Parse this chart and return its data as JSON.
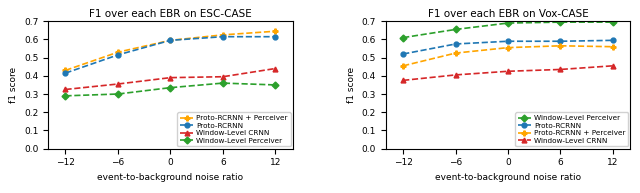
{
  "x": [
    -12,
    -6,
    0,
    6,
    12
  ],
  "esc": {
    "proto_rcrnn_perceiver": [
      0.43,
      0.53,
      0.595,
      0.625,
      0.645
    ],
    "proto_rcrnn": [
      0.415,
      0.515,
      0.595,
      0.615,
      0.615
    ],
    "window_crnn": [
      0.325,
      0.355,
      0.39,
      0.395,
      0.44
    ],
    "window_perceiver": [
      0.29,
      0.3,
      0.335,
      0.36,
      0.35
    ]
  },
  "vox": {
    "window_perceiver": [
      0.61,
      0.655,
      0.69,
      0.695,
      0.695
    ],
    "proto_rcrnn": [
      0.52,
      0.575,
      0.59,
      0.59,
      0.595
    ],
    "proto_rcrnn_perceiver": [
      0.455,
      0.525,
      0.555,
      0.565,
      0.56
    ],
    "window_crnn": [
      0.375,
      0.405,
      0.425,
      0.435,
      0.455
    ]
  },
  "colors": {
    "proto_rcrnn_perceiver": "#FFA500",
    "proto_rcrnn": "#1F77B4",
    "window_crnn": "#D62728",
    "window_perceiver": "#2CA02C"
  },
  "markers": {
    "proto_rcrnn_perceiver": "P",
    "proto_rcrnn": "o",
    "window_crnn": "^",
    "window_perceiver": "D"
  },
  "esc_legend": [
    [
      "proto_rcrnn_perceiver",
      "Proto-RCRNN + Perceiver"
    ],
    [
      "proto_rcrnn",
      "Proto-RCRNN"
    ],
    [
      "window_crnn",
      "Window-Level CRNN"
    ],
    [
      "window_perceiver",
      "Window-Level Perceiver"
    ]
  ],
  "vox_legend": [
    [
      "window_perceiver",
      "Window-Level Perceiver"
    ],
    [
      "proto_rcrnn",
      "Proto-RCRNN"
    ],
    [
      "proto_rcrnn_perceiver",
      "Proto-RCRNN + Perceiver"
    ],
    [
      "window_crnn",
      "Window-Level CRNN"
    ]
  ],
  "title_esc": "F1 over each EBR on ESC-CASE",
  "title_vox": "F1 over each EBR on Vox-CASE",
  "xlabel": "event-to-background noise ratio",
  "ylabel": "f1 score",
  "ylim": [
    0.0,
    0.7
  ],
  "yticks": [
    0.0,
    0.1,
    0.2,
    0.3,
    0.4,
    0.5,
    0.6,
    0.7
  ]
}
